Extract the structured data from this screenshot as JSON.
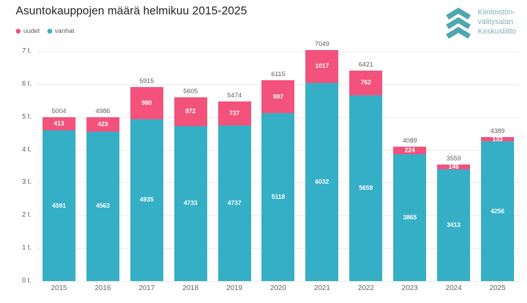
{
  "header": {
    "title": "Asuntokauppojen määrä helmikuu 2015-2025"
  },
  "legend": {
    "items": [
      {
        "label": "uudet",
        "color": "#F3527C"
      },
      {
        "label": "vanhat",
        "color": "#35AFC6"
      }
    ]
  },
  "logo": {
    "line1": "Kiinteistön-",
    "line2": "välitysalan",
    "line3": "Keskusliitto",
    "chevron_color": "#50A7B0"
  },
  "chart_data": {
    "type": "bar",
    "stacked": true,
    "title": "Asuntokauppojen määrä helmikuu 2015-2025",
    "categories": [
      "2015",
      "2016",
      "2017",
      "2018",
      "2019",
      "2020",
      "2021",
      "2022",
      "2023",
      "2024",
      "2025"
    ],
    "series": [
      {
        "name": "uudet",
        "color": "#F3527C",
        "values": [
          413,
          423,
          980,
          872,
          737,
          997,
          1017,
          762,
          224,
          146,
          133
        ]
      },
      {
        "name": "vanhat",
        "color": "#35AFC6",
        "values": [
          4591,
          4563,
          4935,
          4733,
          4737,
          5118,
          6032,
          5659,
          3865,
          3413,
          4256
        ]
      }
    ],
    "totals": [
      5004,
      4986,
      5915,
      5605,
      5474,
      6115,
      7049,
      6421,
      4089,
      3559,
      4389
    ],
    "xlabel": "",
    "ylabel": "",
    "ylim": [
      0,
      7000
    ],
    "ytick_values": [
      0,
      1000,
      2000,
      3000,
      4000,
      5000,
      6000,
      7000
    ],
    "ytick_labels": [
      "0 t.",
      "1 t.",
      "2 t.",
      "3 t.",
      "4 t.",
      "5 t.",
      "6 t.",
      "7 t."
    ],
    "grid": true,
    "legend_position": "top-left"
  }
}
